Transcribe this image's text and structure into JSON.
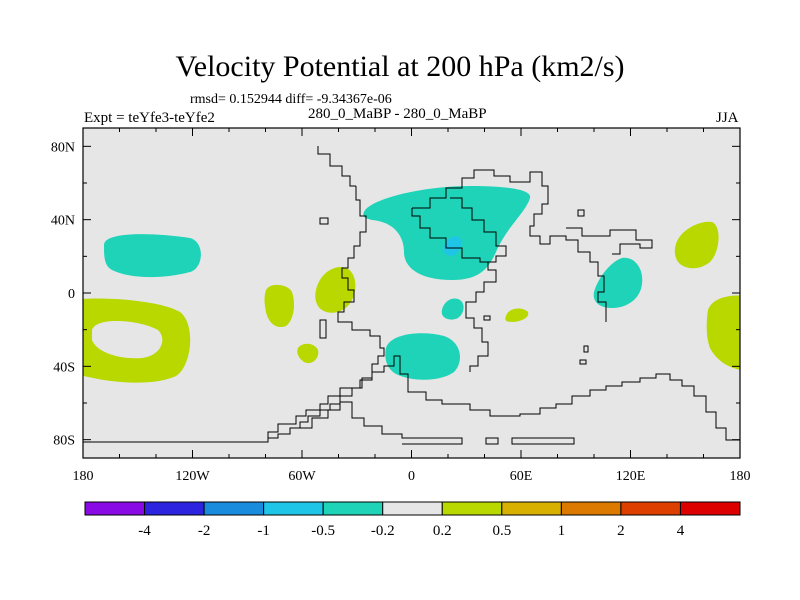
{
  "chart_data": {
    "type": "map",
    "title": "Velocity Potential at 200 hPa (km2/s)",
    "stats": "rmsd= 0.152944 diff= -9.34367e-06",
    "left_label": "Expt = teYfe3-teYfe2",
    "center_label": "280_0_MaBP - 280_0_MaBP",
    "right_label": "JJA",
    "x_ticks": [
      "180",
      "120W",
      "60W",
      "0",
      "60E",
      "120E",
      "180"
    ],
    "y_ticks": [
      "80N",
      "40N",
      "0",
      "40S",
      "80S"
    ],
    "xlim": [
      -180,
      180
    ],
    "ylim": [
      -90,
      90
    ],
    "colorbar": {
      "colors": [
        "#8a0ae6",
        "#2d24e0",
        "#1a8cde",
        "#1fc5e6",
        "#1fd3b8",
        "#e6e6e6",
        "#b8d800",
        "#d8b000",
        "#dc7a00",
        "#dc3f00",
        "#dd0000"
      ],
      "labels": [
        "-4",
        "-2",
        "-1",
        "-0.5",
        "-0.2",
        "0.2",
        "0.5",
        "1",
        "2",
        "4"
      ],
      "levels": [
        -4,
        -2,
        -1,
        -0.5,
        -0.2,
        0.2,
        0.5,
        1,
        2,
        4
      ]
    },
    "regions": [
      {
        "name": "n-pacific-neg",
        "level": -0.2,
        "lon": -150,
        "lat": 27
      },
      {
        "name": "n-atlantic-asia-neg",
        "level": -0.2,
        "lon": 40,
        "lat": 30
      },
      {
        "name": "central-asia-min",
        "level": -0.5,
        "lon": 24,
        "lat": 25
      },
      {
        "name": "s-atlantic-neg",
        "level": -0.2,
        "lon": 10,
        "lat": -30
      },
      {
        "name": "west-pacific-neg",
        "level": -0.2,
        "lon": 115,
        "lat": 5
      },
      {
        "name": "africa-neg",
        "level": -0.2,
        "lon": 25,
        "lat": -5
      },
      {
        "name": "s-pacific-pos",
        "level": 0.2,
        "lon": -157,
        "lat": -25
      },
      {
        "name": "east-pacific-pos-a",
        "level": 0.2,
        "lon": -70,
        "lat": 0
      },
      {
        "name": "east-pacific-pos-b",
        "level": 0.2,
        "lon": -37,
        "lat": 5
      },
      {
        "name": "s-america-pos",
        "level": 0.2,
        "lon": -52,
        "lat": -30
      },
      {
        "name": "indian-ocean-pos",
        "level": 0.2,
        "lon": 60,
        "lat": -10
      },
      {
        "name": "nw-pacific-pos",
        "level": 0.2,
        "lon": 155,
        "lat": 30
      },
      {
        "name": "dateline-pos",
        "level": 0.2,
        "lon": 175,
        "lat": -15
      }
    ]
  }
}
